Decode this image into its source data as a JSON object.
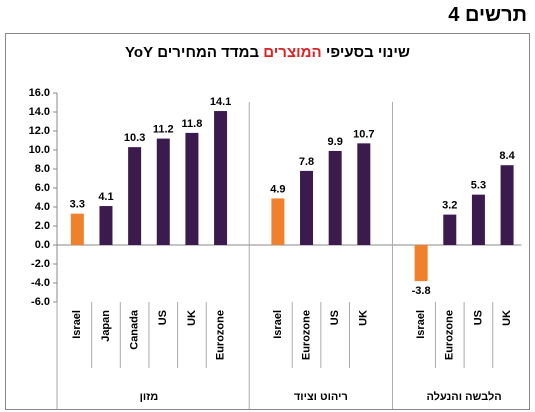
{
  "chart_number": "תרשים 4",
  "chart_data": {
    "type": "bar",
    "title": [
      "שינוי בסעיפי",
      "המוצרים",
      "במדד המחירים YoY"
    ],
    "title_highlight_color": "#e02020",
    "ylim": [
      -6,
      16
    ],
    "yticks": [
      {
        "value": -6,
        "label": "-6.0"
      },
      {
        "value": -4,
        "label": "-4.0"
      },
      {
        "value": -2,
        "label": "-2.0"
      },
      {
        "value": 0,
        "label": "0.0"
      },
      {
        "value": 2,
        "label": "2.0"
      },
      {
        "value": 4,
        "label": "4.0"
      },
      {
        "value": 6,
        "label": "6.0"
      },
      {
        "value": 8,
        "label": "8.0"
      },
      {
        "value": 10,
        "label": "10.0"
      },
      {
        "value": 12,
        "label": "12.0"
      },
      {
        "value": 14,
        "label": "14.0"
      },
      {
        "value": 16,
        "label": "16.0"
      }
    ],
    "groups": [
      {
        "name": "מזון",
        "categories": [
          "Israel",
          "Japan",
          "Canada",
          "US",
          "UK",
          "Eurozone"
        ],
        "values": [
          3.3,
          4.1,
          10.3,
          11.2,
          11.8,
          14.1
        ],
        "colors": [
          "#f0802c",
          "#3b1b4d",
          "#3b1b4d",
          "#3b1b4d",
          "#3b1b4d",
          "#3b1b4d"
        ]
      },
      {
        "name": "ריהוט וציוד",
        "categories": [
          "Israel",
          "Eurozone",
          "US",
          "UK"
        ],
        "values": [
          4.9,
          7.8,
          9.9,
          10.7
        ],
        "colors": [
          "#f0802c",
          "#3b1b4d",
          "#3b1b4d",
          "#3b1b4d"
        ]
      },
      {
        "name": "הלבשה והנעלה",
        "categories": [
          "Israel",
          "Eurozone",
          "US",
          "UK"
        ],
        "values": [
          -3.8,
          3.2,
          5.3,
          8.4
        ],
        "colors": [
          "#f0802c",
          "#3b1b4d",
          "#3b1b4d",
          "#3b1b4d"
        ]
      }
    ]
  }
}
